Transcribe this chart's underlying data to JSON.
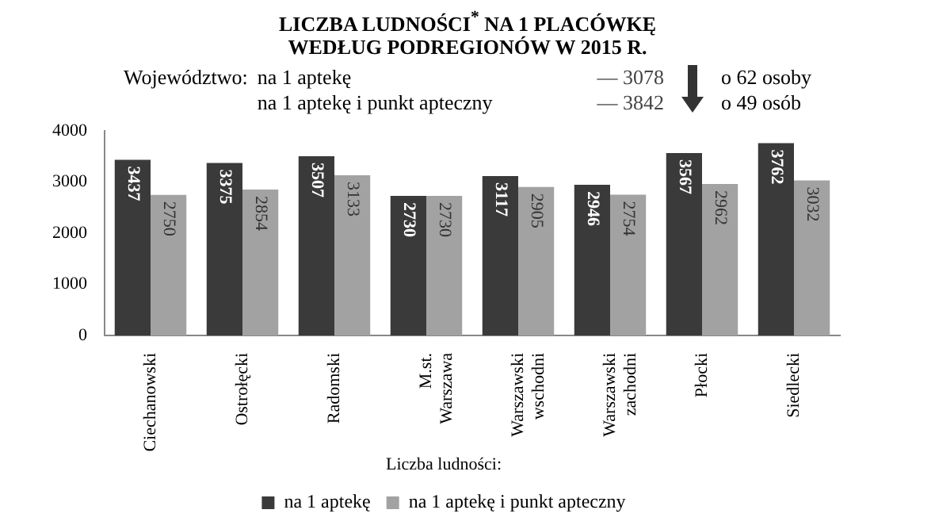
{
  "chart_data": {
    "type": "bar",
    "title": "LICZBA LUDNOŚCI$^{*}$ NA 1 PLACÓWKĘ\nWEDŁUG PODREGIONÓW W 2015 R.",
    "annotations": [
      "Województwo:",
      "na 1 aptekę",
      "— 3078",
      "o 62 osoby",
      "na 1 aptekę i punkt apteczny",
      "— 3842",
      "o 49 osób"
    ],
    "categories": [
      "Ciechanowski",
      "Ostrołęcki",
      "Radomski",
      "M.st. Warszawa",
      "Warszawski wschodni",
      "Warszawski zachodni",
      "Płocki",
      "Siedlecki"
    ],
    "series": [
      {
        "name": "na 1 aptekę",
        "color": "#3a3a3a",
        "values": [
          3437,
          3375,
          3507,
          2730,
          3117,
          2946,
          3567,
          3762
        ]
      },
      {
        "name": "na 1 aptekę i punkt apteczny",
        "color": "#a2a2a2",
        "values": [
          2750,
          2854,
          3133,
          2730,
          2905,
          2754,
          2962,
          3032
        ]
      }
    ],
    "legend_title": "Liczba ludności:",
    "legend": "bottom",
    "data_labels": true,
    "ylim": [
      0,
      4000
    ],
    "yticks": [
      0,
      1000,
      2000,
      3000,
      4000
    ],
    "grid": false
  }
}
